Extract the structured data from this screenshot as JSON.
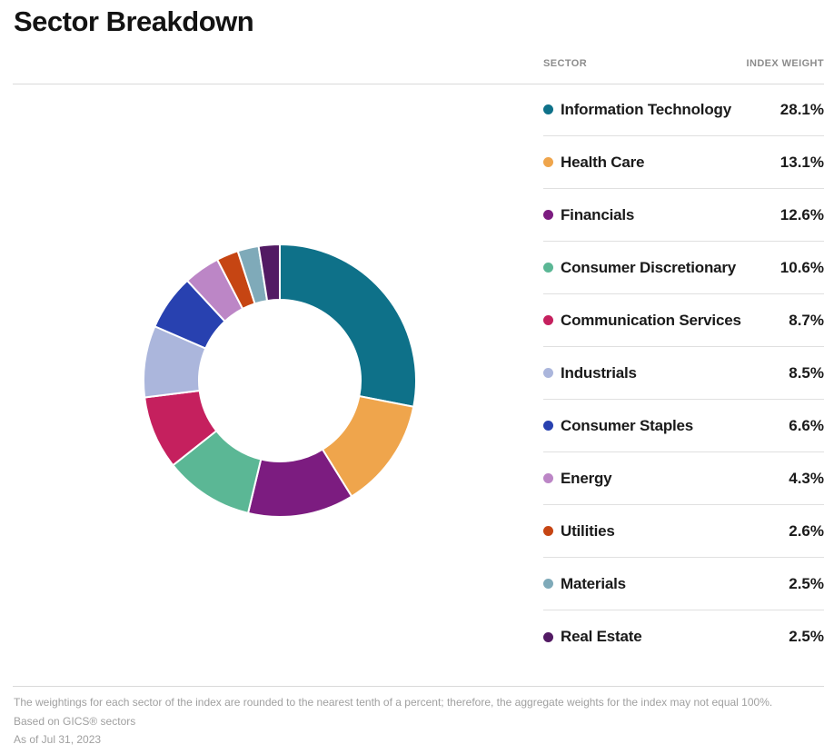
{
  "page": {
    "title": "Sector Breakdown"
  },
  "table": {
    "headers": {
      "sector": "SECTOR",
      "weight": "INDEX WEIGHT"
    }
  },
  "chart_data": {
    "type": "pie",
    "subtype": "donut",
    "title": "Sector Breakdown",
    "start_angle_deg": -90,
    "direction": "clockwise",
    "inner_radius_ratio": 0.59,
    "legend_position": "right-table",
    "categories": [
      "Information Technology",
      "Health Care",
      "Financials",
      "Consumer Discretionary",
      "Communication Services",
      "Industrials",
      "Consumer Staples",
      "Energy",
      "Utilities",
      "Materials",
      "Real Estate"
    ],
    "values": [
      28.1,
      13.1,
      12.6,
      10.6,
      8.7,
      8.5,
      6.6,
      4.3,
      2.6,
      2.5,
      2.5
    ],
    "labels": [
      "28.1%",
      "13.1%",
      "12.6%",
      "10.6%",
      "8.7%",
      "8.5%",
      "6.6%",
      "4.3%",
      "2.6%",
      "2.5%",
      "2.5%"
    ],
    "colors": [
      "#0E7189",
      "#EFA54C",
      "#7C1C80",
      "#5BB795",
      "#C5205E",
      "#ABB6DC",
      "#2841B0",
      "#BC86C6",
      "#C64513",
      "#7FAAB9",
      "#521A63"
    ]
  },
  "footer": {
    "note": "The weightings for each sector of the index are rounded to the nearest tenth of a percent; therefore, the aggregate weights for the index may not equal 100%.",
    "basis": "Based on GICS® sectors",
    "as_of": "As of Jul 31, 2023"
  }
}
